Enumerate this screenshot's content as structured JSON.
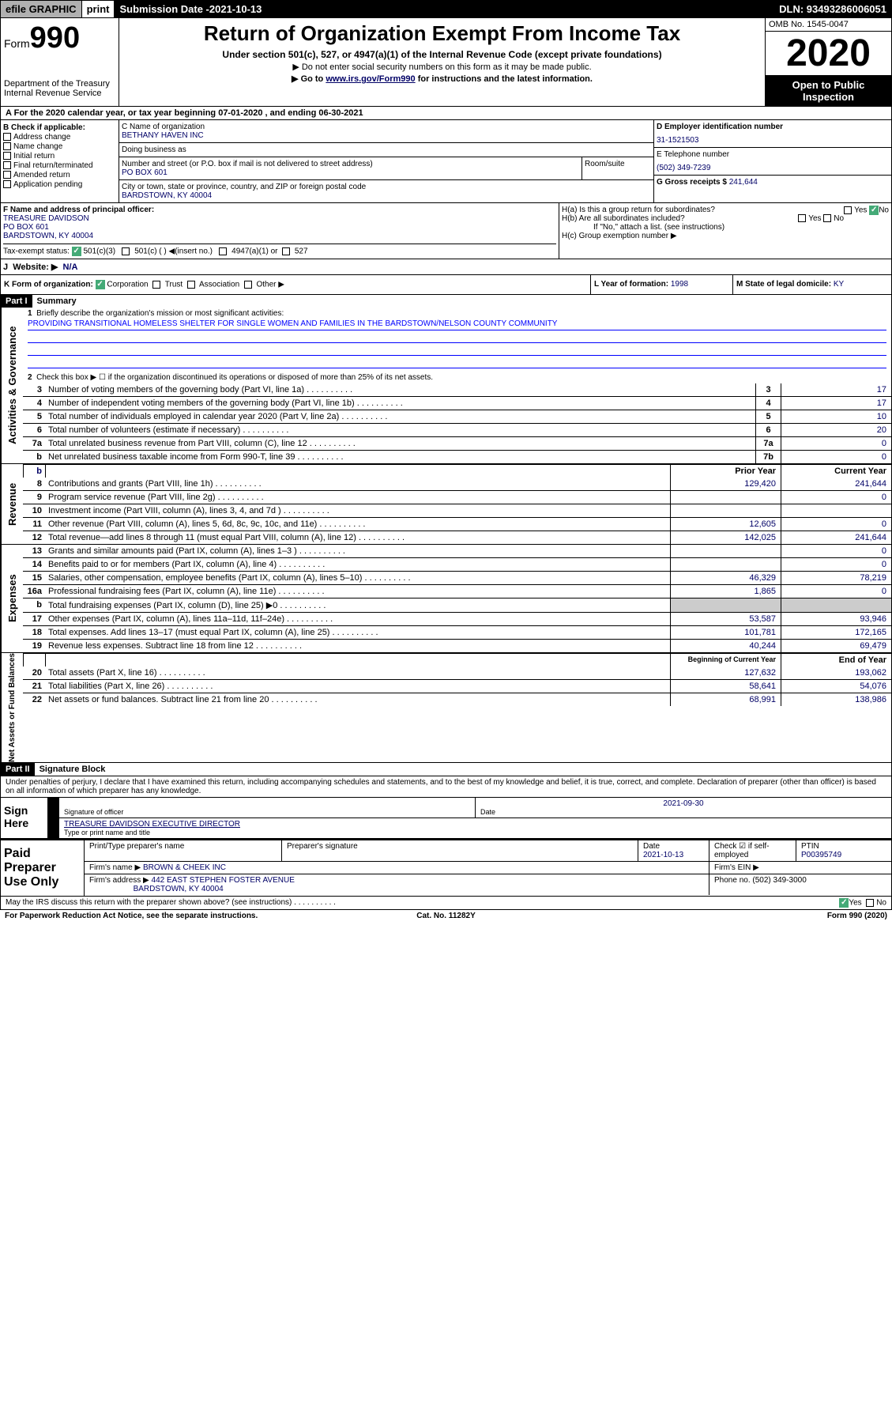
{
  "topbar": {
    "efile": "efile GRAPHIC",
    "print": "print",
    "subdate_label": "Submission Date - ",
    "subdate": "2021-10-13",
    "dln": "DLN: 93493286006051"
  },
  "header": {
    "form": "Form",
    "formnum": "990",
    "dept": "Department of the Treasury",
    "irs": "Internal Revenue Service",
    "title": "Return of Organization Exempt From Income Tax",
    "sub1": "Under section 501(c), 527, or 4947(a)(1) of the Internal Revenue Code (except private foundations)",
    "sub2": "▶ Do not enter social security numbers on this form as it may be made public.",
    "sub3a": "▶ Go to ",
    "sub3link": "www.irs.gov/Form990",
    "sub3b": " for instructions and the latest information.",
    "omb": "OMB No. 1545-0047",
    "year": "2020",
    "inspect1": "Open to Public",
    "inspect2": "Inspection"
  },
  "calyear": "For the 2020 calendar year, or tax year beginning 07-01-2020    , and ending 06-30-2021",
  "boxB": {
    "title": "B Check if applicable:",
    "items": [
      "Address change",
      "Name change",
      "Initial return",
      "Final return/terminated",
      "Amended return",
      "Application pending"
    ]
  },
  "boxC": {
    "name_label": "C Name of organization",
    "name": "BETHANY HAVEN INC",
    "dba_label": "Doing business as",
    "dba": "",
    "addr_label": "Number and street (or P.O. box if mail is not delivered to street address)",
    "room_label": "Room/suite",
    "addr": "PO BOX 601",
    "city_label": "City or town, state or province, country, and ZIP or foreign postal code",
    "city": "BARDSTOWN, KY  40004"
  },
  "boxD": {
    "label": "D Employer identification number",
    "val": "31-1521503"
  },
  "boxE": {
    "label": "E Telephone number",
    "val": "(502) 349-7239"
  },
  "boxG": {
    "label": "G Gross receipts $",
    "val": "241,644"
  },
  "boxF": {
    "label": "F Name and address of principal officer:",
    "name": "TREASURE DAVIDSON",
    "addr1": "PO BOX 601",
    "addr2": "BARDSTOWN, KY  40004"
  },
  "boxH": {
    "a": "H(a)  Is this a group return for subordinates?",
    "b": "H(b)  Are all subordinates included?",
    "bnote": "If \"No,\" attach a list. (see instructions)",
    "c": "H(c)  Group exemption number ▶",
    "yes": "Yes",
    "no": "No"
  },
  "taxexempt": {
    "label": "Tax-exempt status:",
    "o1": "501(c)(3)",
    "o2": "501(c) (   ) ◀(insert no.)",
    "o3": "4947(a)(1) or",
    "o4": "527"
  },
  "website": {
    "label": "Website: ▶",
    "val": "N/A"
  },
  "boxK": {
    "label": "K Form of organization:",
    "corp": "Corporation",
    "trust": "Trust",
    "assoc": "Association",
    "other": "Other ▶"
  },
  "boxL": {
    "label": "L Year of formation:",
    "val": "1998"
  },
  "boxM": {
    "label": "M State of legal domicile:",
    "val": "KY"
  },
  "part1": {
    "hdr": "Part I",
    "title": "Summary",
    "l1": "Briefly describe the organization's mission or most significant activities:",
    "mission": "PROVIDING TRANSITIONAL HOMELESS SHELTER FOR SINGLE WOMEN AND FAMILIES IN THE BARDSTOWN/NELSON COUNTY COMMUNITY",
    "l2": "Check this box ▶ ☐  if the organization discontinued its operations or disposed of more than 25% of its net assets.",
    "rows_gov": [
      {
        "n": "3",
        "d": "Number of voting members of the governing body (Part VI, line 1a)",
        "c": "3",
        "v": "17"
      },
      {
        "n": "4",
        "d": "Number of independent voting members of the governing body (Part VI, line 1b)",
        "c": "4",
        "v": "17"
      },
      {
        "n": "5",
        "d": "Total number of individuals employed in calendar year 2020 (Part V, line 2a)",
        "c": "5",
        "v": "10"
      },
      {
        "n": "6",
        "d": "Total number of volunteers (estimate if necessary)",
        "c": "6",
        "v": "20"
      },
      {
        "n": "7a",
        "d": "Total unrelated business revenue from Part VIII, column (C), line 12",
        "c": "7a",
        "v": "0"
      },
      {
        "n": "b",
        "d": "Net unrelated business taxable income from Form 990-T, line 39",
        "c": "7b",
        "v": "0"
      }
    ],
    "prior": "Prior Year",
    "current": "Current Year",
    "rows_rev": [
      {
        "n": "8",
        "d": "Contributions and grants (Part VIII, line 1h)",
        "p": "129,420",
        "c": "241,644"
      },
      {
        "n": "9",
        "d": "Program service revenue (Part VIII, line 2g)",
        "p": "",
        "c": "0"
      },
      {
        "n": "10",
        "d": "Investment income (Part VIII, column (A), lines 3, 4, and 7d )",
        "p": "",
        "c": ""
      },
      {
        "n": "11",
        "d": "Other revenue (Part VIII, column (A), lines 5, 6d, 8c, 9c, 10c, and 11e)",
        "p": "12,605",
        "c": "0"
      },
      {
        "n": "12",
        "d": "Total revenue—add lines 8 through 11 (must equal Part VIII, column (A), line 12)",
        "p": "142,025",
        "c": "241,644"
      }
    ],
    "rows_exp": [
      {
        "n": "13",
        "d": "Grants and similar amounts paid (Part IX, column (A), lines 1–3 )",
        "p": "",
        "c": "0"
      },
      {
        "n": "14",
        "d": "Benefits paid to or for members (Part IX, column (A), line 4)",
        "p": "",
        "c": "0"
      },
      {
        "n": "15",
        "d": "Salaries, other compensation, employee benefits (Part IX, column (A), lines 5–10)",
        "p": "46,329",
        "c": "78,219"
      },
      {
        "n": "16a",
        "d": "Professional fundraising fees (Part IX, column (A), line 11e)",
        "p": "1,865",
        "c": "0"
      },
      {
        "n": "b",
        "d": "Total fundraising expenses (Part IX, column (D), line 25) ▶0",
        "p": "grey",
        "c": "grey"
      },
      {
        "n": "17",
        "d": "Other expenses (Part IX, column (A), lines 11a–11d, 11f–24e)",
        "p": "53,587",
        "c": "93,946"
      },
      {
        "n": "18",
        "d": "Total expenses. Add lines 13–17 (must equal Part IX, column (A), line 25)",
        "p": "101,781",
        "c": "172,165"
      },
      {
        "n": "19",
        "d": "Revenue less expenses. Subtract line 18 from line 12",
        "p": "40,244",
        "c": "69,479"
      }
    ],
    "begin": "Beginning of Current Year",
    "end": "End of Year",
    "rows_net": [
      {
        "n": "20",
        "d": "Total assets (Part X, line 16)",
        "p": "127,632",
        "c": "193,062"
      },
      {
        "n": "21",
        "d": "Total liabilities (Part X, line 26)",
        "p": "58,641",
        "c": "54,076"
      },
      {
        "n": "22",
        "d": "Net assets or fund balances. Subtract line 21 from line 20",
        "p": "68,991",
        "c": "138,986"
      }
    ],
    "vlabels": {
      "gov": "Activities & Governance",
      "rev": "Revenue",
      "exp": "Expenses",
      "net": "Net Assets or Fund Balances"
    }
  },
  "part2": {
    "hdr": "Part II",
    "title": "Signature Block",
    "decl": "Under penalties of perjury, I declare that I have examined this return, including accompanying schedules and statements, and to the best of my knowledge and belief, it is true, correct, and complete. Declaration of preparer (other than officer) is based on all information of which preparer has any knowledge.",
    "sign": "Sign Here",
    "sig_officer": "Signature of officer",
    "sig_date": "2021-09-30",
    "date_label": "Date",
    "name_title": "TREASURE DAVIDSON  EXECUTIVE DIRECTOR",
    "name_label": "Type or print name and title",
    "paid": "Paid Preparer Use Only",
    "prep_name_label": "Print/Type preparer's name",
    "prep_sig_label": "Preparer's signature",
    "prep_date_label": "Date",
    "prep_date": "2021-10-13",
    "check_self": "Check ☑ if self-employed",
    "ptin_label": "PTIN",
    "ptin": "P00395749",
    "firm_name_label": "Firm's name    ▶",
    "firm_name": "BROWN & CHEEK INC",
    "firm_ein_label": "Firm's EIN ▶",
    "firm_addr_label": "Firm's address ▶",
    "firm_addr1": "442 EAST STEPHEN FOSTER AVENUE",
    "firm_addr2": "BARDSTOWN, KY  40004",
    "phone_label": "Phone no.",
    "phone": "(502) 349-3000",
    "discuss": "May the IRS discuss this return with the preparer shown above? (see instructions)",
    "yes": "Yes",
    "no": "No"
  },
  "footer": {
    "paperwork": "For Paperwork Reduction Act Notice, see the separate instructions.",
    "cat": "Cat. No. 11282Y",
    "form": "Form 990 (2020)"
  }
}
